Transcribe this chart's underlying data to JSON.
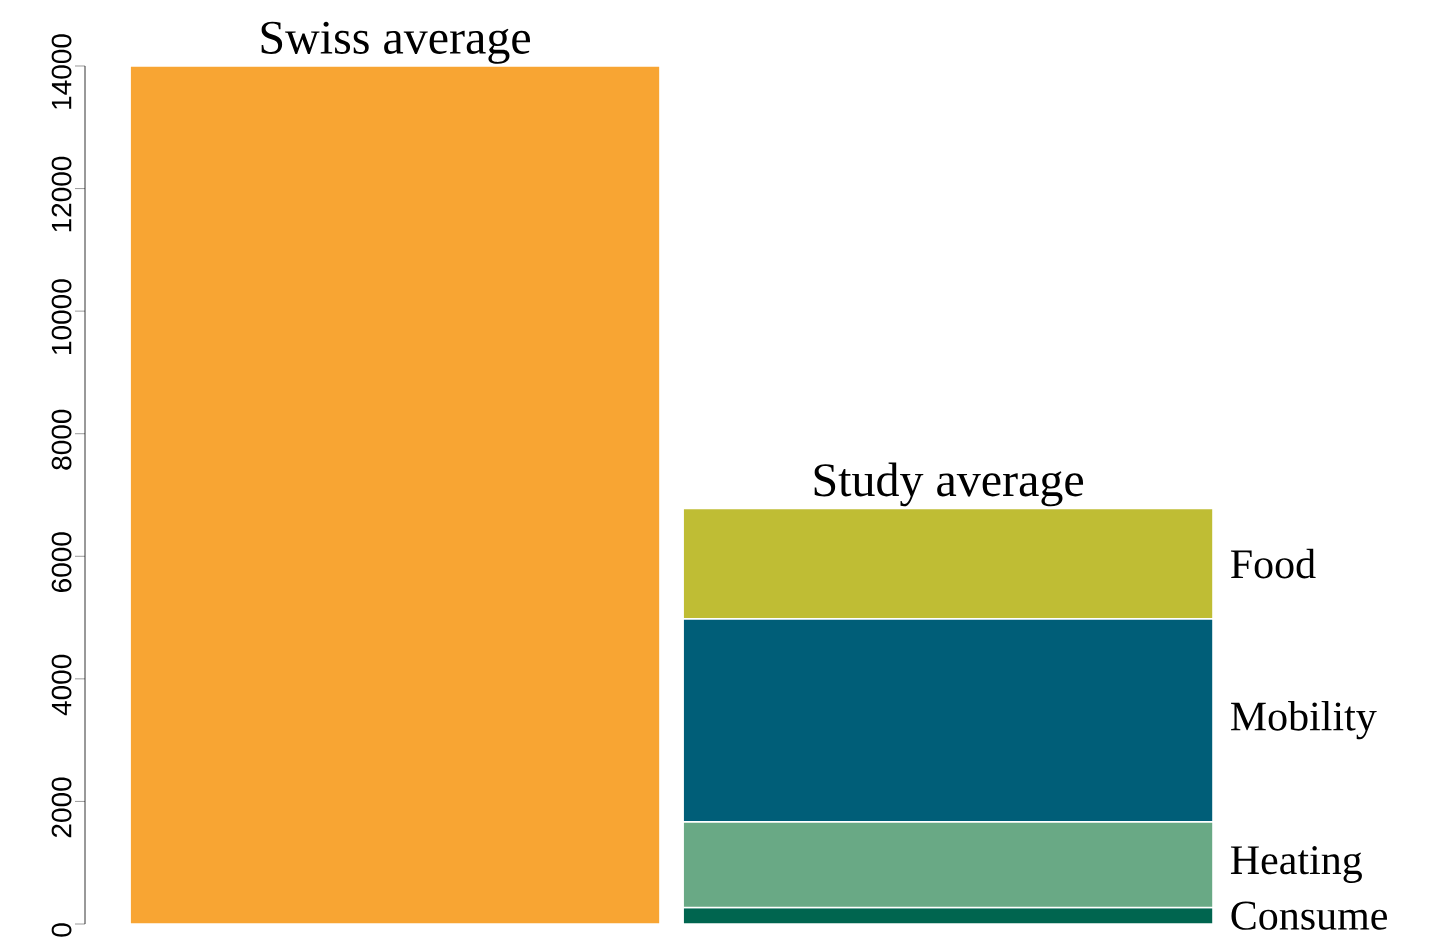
{
  "chart_data": {
    "type": "bar",
    "stacked": true,
    "categories": [
      "Swiss average",
      "Study average"
    ],
    "series": [
      {
        "color": "#f8a533",
        "values": [
          14000,
          null
        ]
      },
      {
        "name": "Consume",
        "color": "#00654f",
        "values": [
          null,
          270
        ]
      },
      {
        "name": "Heating",
        "color": "#69a985",
        "values": [
          null,
          1400
        ]
      },
      {
        "name": "Mobility",
        "color": "#005e78",
        "values": [
          null,
          3310
        ]
      },
      {
        "name": "Food",
        "color": "#bfbd34",
        "values": [
          null,
          1800
        ]
      }
    ],
    "ylim": [
      0,
      14000
    ],
    "yticks": [
      0,
      2000,
      4000,
      6000,
      8000,
      10000,
      12000,
      14000
    ],
    "grid": false
  }
}
